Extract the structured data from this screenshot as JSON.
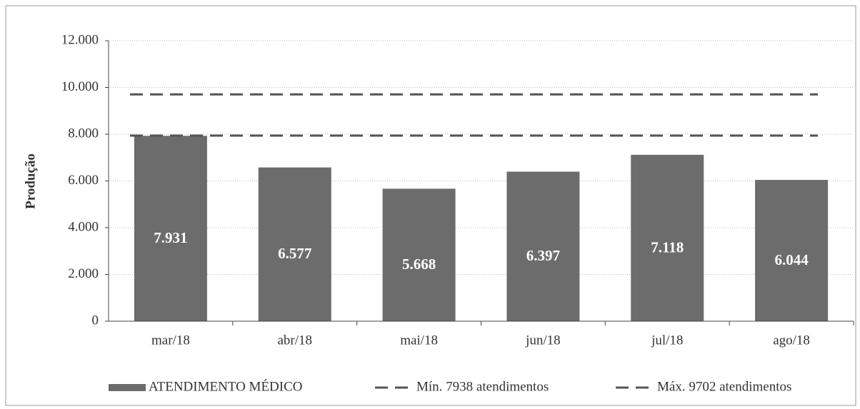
{
  "chart_data": {
    "type": "bar",
    "y_label": "Produção",
    "categories": [
      "mar/18",
      "abr/18",
      "mai/18",
      "jun/18",
      "jul/18",
      "ago/18"
    ],
    "series": [
      {
        "name": "ATENDIMENTO MÉDICO",
        "color": "#6c6c6c",
        "values": [
          7931,
          6577,
          5668,
          6397,
          7118,
          6044
        ],
        "value_labels": [
          "7.931",
          "6.577",
          "5.668",
          "6.397",
          "7.118",
          "6.044"
        ]
      }
    ],
    "reference_lines": [
      {
        "name": "Mín. 7938 atendimentos",
        "value": 7938,
        "color": "#555555"
      },
      {
        "name": "Máx. 9702 atendimentos",
        "value": 9702,
        "color": "#555555"
      }
    ],
    "ylim": [
      0,
      12000
    ],
    "yticks": [
      0,
      {
        "value": 2000,
        "label": "2.000"
      },
      {
        "value": 4000,
        "label": "4.000"
      },
      {
        "value": 6000,
        "label": "6.000"
      },
      {
        "value": 8000,
        "label": "8.000"
      },
      {
        "value": 10000,
        "label": "10.000"
      },
      {
        "value": 12000,
        "label": "12.000"
      }
    ],
    "grid": true,
    "legend": "bottom"
  }
}
